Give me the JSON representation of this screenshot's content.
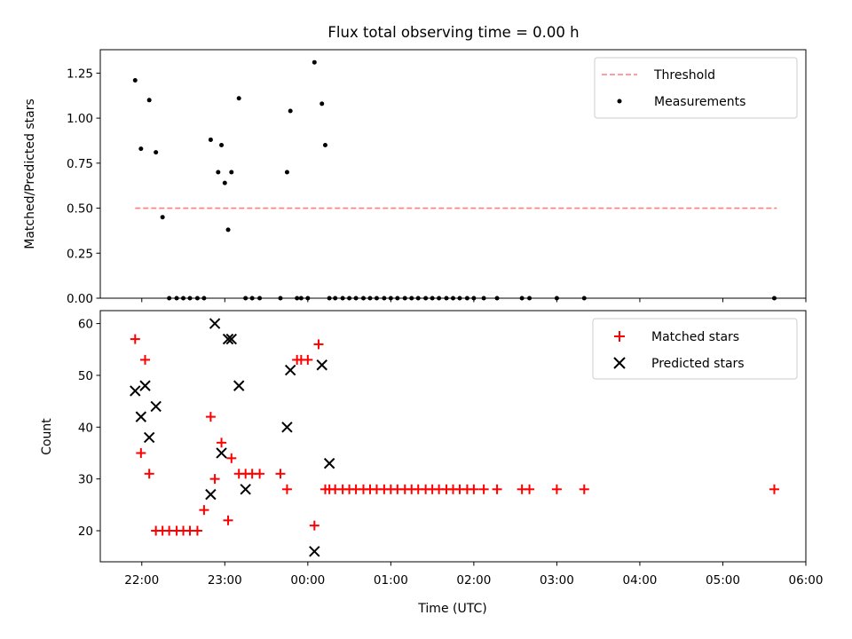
{
  "chart_data": [
    {
      "type": "scatter",
      "title": "Flux total observing time = 0.00 h",
      "xlabel": "",
      "ylabel": "Matched/Predicted stars",
      "xlim": [
        21.5,
        30.0
      ],
      "ylim": [
        0.0,
        1.38
      ],
      "yticks": [
        {
          "value": 0.0,
          "label": "0.00"
        },
        {
          "value": 0.25,
          "label": "0.25"
        },
        {
          "value": 0.5,
          "label": "0.50"
        },
        {
          "value": 0.75,
          "label": "0.75"
        },
        {
          "value": 1.0,
          "label": "1.00"
        },
        {
          "value": 1.25,
          "label": "1.25"
        }
      ],
      "legend": {
        "position": "upper right",
        "entries": [
          "Threshold",
          "Measurements"
        ]
      },
      "series": [
        {
          "name": "Threshold",
          "style": "dashed-line",
          "color": "#ff7f7f",
          "x": [
            21.92,
            29.65
          ],
          "y": [
            0.5,
            0.5
          ]
        },
        {
          "name": "Measurements",
          "style": "dot",
          "color": "#000000",
          "x": [
            21.92,
            21.99,
            22.09,
            22.17,
            22.25,
            22.33,
            22.42,
            22.5,
            22.58,
            22.67,
            22.75,
            22.83,
            22.92,
            22.96,
            23.0,
            23.04,
            23.08,
            23.17,
            23.25,
            23.33,
            23.42,
            23.67,
            23.75,
            23.79,
            23.87,
            23.92,
            24.0,
            24.08,
            24.17,
            24.21,
            24.26,
            24.33,
            24.42,
            24.5,
            24.58,
            24.67,
            24.75,
            24.83,
            24.92,
            25.0,
            25.08,
            25.17,
            25.25,
            25.33,
            25.42,
            25.5,
            25.58,
            25.67,
            25.75,
            25.83,
            25.92,
            26.0,
            26.12,
            26.28,
            26.58,
            26.67,
            27.0,
            27.33,
            29.62
          ],
          "y": [
            1.21,
            0.83,
            1.1,
            0.81,
            0.45,
            0.0,
            0.0,
            0.0,
            0.0,
            0.0,
            0.0,
            0.88,
            0.7,
            0.85,
            0.64,
            0.38,
            0.7,
            1.11,
            0.0,
            0.0,
            0.0,
            0.0,
            0.7,
            1.04,
            0.0,
            0.0,
            0.0,
            1.31,
            1.08,
            0.85,
            0.0,
            0.0,
            0.0,
            0.0,
            0.0,
            0.0,
            0.0,
            0.0,
            0.0,
            0.0,
            0.0,
            0.0,
            0.0,
            0.0,
            0.0,
            0.0,
            0.0,
            0.0,
            0.0,
            0.0,
            0.0,
            0.0,
            0.0,
            0.0,
            0.0,
            0.0,
            0.0,
            0.0,
            0.0
          ]
        }
      ]
    },
    {
      "type": "scatter",
      "title": "",
      "xlabel": "Time (UTC)",
      "ylabel": "Count",
      "xlim": [
        21.5,
        30.0
      ],
      "ylim": [
        14.0,
        62.5
      ],
      "xticks": [
        {
          "value": 22,
          "label": "22:00"
        },
        {
          "value": 23,
          "label": "23:00"
        },
        {
          "value": 24,
          "label": "00:00"
        },
        {
          "value": 25,
          "label": "01:00"
        },
        {
          "value": 26,
          "label": "02:00"
        },
        {
          "value": 27,
          "label": "03:00"
        },
        {
          "value": 28,
          "label": "04:00"
        },
        {
          "value": 29,
          "label": "05:00"
        },
        {
          "value": 30,
          "label": "06:00"
        }
      ],
      "yticks": [
        {
          "value": 20,
          "label": "20"
        },
        {
          "value": 30,
          "label": "30"
        },
        {
          "value": 40,
          "label": "40"
        },
        {
          "value": 50,
          "label": "50"
        },
        {
          "value": 60,
          "label": "60"
        }
      ],
      "legend": {
        "position": "upper right",
        "entries": [
          "Matched stars",
          "Predicted stars"
        ]
      },
      "series": [
        {
          "name": "Matched stars",
          "style": "plus",
          "color": "#ff0000",
          "x": [
            21.92,
            21.99,
            22.04,
            22.09,
            22.17,
            22.25,
            22.33,
            22.42,
            22.5,
            22.58,
            22.67,
            22.75,
            22.83,
            22.88,
            22.96,
            23.04,
            23.08,
            23.17,
            23.25,
            23.33,
            23.42,
            23.67,
            23.75,
            23.87,
            23.92,
            24.0,
            24.08,
            24.13,
            24.21,
            24.26,
            24.33,
            24.42,
            24.5,
            24.58,
            24.67,
            24.75,
            24.83,
            24.92,
            25.0,
            25.08,
            25.17,
            25.25,
            25.33,
            25.42,
            25.5,
            25.58,
            25.67,
            25.75,
            25.83,
            25.92,
            26.0,
            26.12,
            26.28,
            26.58,
            26.67,
            27.0,
            27.33,
            29.62
          ],
          "y": [
            57,
            35,
            53,
            31,
            20,
            20,
            20,
            20,
            20,
            20,
            20,
            24,
            42,
            30,
            37,
            22,
            34,
            31,
            31,
            31,
            31,
            31,
            28,
            53,
            53,
            53,
            21,
            56,
            28,
            28,
            28,
            28,
            28,
            28,
            28,
            28,
            28,
            28,
            28,
            28,
            28,
            28,
            28,
            28,
            28,
            28,
            28,
            28,
            28,
            28,
            28,
            28,
            28,
            28,
            28,
            28,
            28,
            28
          ]
        },
        {
          "name": "Predicted stars",
          "style": "x",
          "color": "#000000",
          "x": [
            21.92,
            21.99,
            22.04,
            22.09,
            22.17,
            22.83,
            22.88,
            22.96,
            23.04,
            23.08,
            23.17,
            23.25,
            23.75,
            23.79,
            24.08,
            24.17,
            24.26
          ],
          "y": [
            47,
            42,
            48,
            38,
            44,
            27,
            60,
            35,
            57,
            57,
            48,
            28,
            40,
            51,
            16,
            52,
            33
          ]
        }
      ]
    }
  ]
}
